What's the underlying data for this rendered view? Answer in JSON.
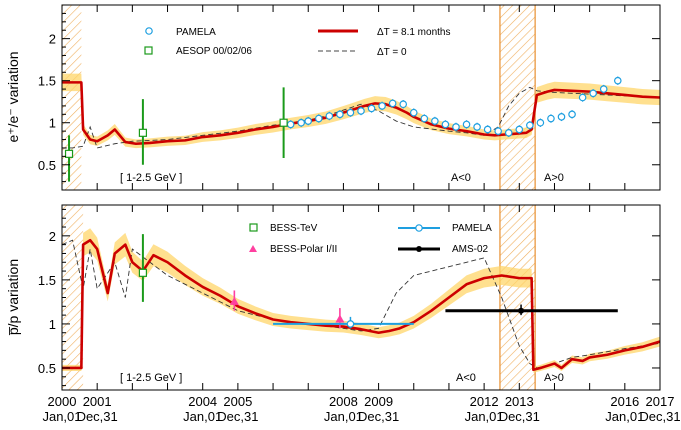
{
  "chart_data": [
    {
      "type": "line",
      "id": "top",
      "ylabel": "e+/e- variation",
      "ylim": [
        0.2,
        2.4
      ],
      "y_ticks": [
        "0.5",
        "1",
        "1.5",
        "2"
      ],
      "y_tick_values": [
        0.5,
        1,
        1.5,
        2
      ],
      "energy_label": "[ 1-2.5 GeV ]",
      "polarity_labels": [
        "A<0",
        "A>0"
      ],
      "shaded_periods": [
        [
          2000.0,
          2000.55
        ],
        [
          2012.45,
          2013.45
        ]
      ],
      "reversal_lines": [
        2012.45,
        2013.45
      ],
      "legend": {
        "pamela": "PAMELA",
        "aesop": "AESOP 00/02/06",
        "model_lag": "ΔT = 8.1 months",
        "model_zero": "ΔT = 0"
      },
      "series": [
        {
          "name": "ΔT = 8.1 months",
          "style": "model",
          "x": [
            2000.0,
            2000.55,
            2000.6,
            2000.8,
            2001.0,
            2001.3,
            2001.5,
            2001.8,
            2002.1,
            2002.5,
            2003.0,
            2003.5,
            2004.0,
            2004.5,
            2005.0,
            2005.5,
            2006.0,
            2006.5,
            2007.0,
            2007.5,
            2008.0,
            2008.3,
            2008.6,
            2008.9,
            2009.2,
            2009.5,
            2009.8,
            2010.0,
            2010.5,
            2011.0,
            2011.5,
            2012.0,
            2012.3,
            2012.6,
            2012.9,
            2013.2,
            2013.35,
            2013.5,
            2013.8,
            2014.0,
            2014.5,
            2015.0,
            2015.5,
            2016.0,
            2016.5,
            2017.0
          ],
          "y": [
            1.48,
            1.48,
            0.92,
            0.8,
            0.78,
            0.85,
            0.92,
            0.77,
            0.75,
            0.76,
            0.78,
            0.79,
            0.83,
            0.85,
            0.88,
            0.92,
            0.95,
            0.99,
            1.02,
            1.06,
            1.12,
            1.16,
            1.2,
            1.23,
            1.22,
            1.18,
            1.12,
            1.07,
            0.98,
            0.93,
            0.9,
            0.86,
            0.85,
            0.86,
            0.87,
            0.88,
            0.92,
            1.33,
            1.37,
            1.39,
            1.38,
            1.37,
            1.35,
            1.33,
            1.31,
            1.3
          ]
        },
        {
          "name": "ΔT = 0",
          "style": "dashed",
          "x": [
            2000.0,
            2000.3,
            2000.6,
            2000.8,
            2001.0,
            2001.5,
            2002.0,
            2003.0,
            2004.0,
            2005.0,
            2006.0,
            2007.0,
            2007.5,
            2008.0,
            2008.5,
            2009.0,
            2009.5,
            2010.0,
            2011.0,
            2011.5,
            2012.0,
            2012.4,
            2012.7,
            2013.0,
            2013.3,
            2013.5,
            2014.0,
            2014.5,
            2015.0,
            2016.0,
            2017.0
          ],
          "y": [
            0.7,
            0.7,
            0.72,
            0.95,
            0.7,
            0.75,
            0.78,
            0.8,
            0.85,
            0.9,
            0.97,
            1.03,
            1.08,
            1.15,
            1.22,
            1.14,
            1.02,
            0.95,
            0.9,
            0.88,
            0.85,
            0.95,
            1.2,
            1.35,
            1.42,
            1.38,
            1.36,
            1.35,
            1.34,
            1.32,
            1.3
          ]
        },
        {
          "name": "PAMELA",
          "style": "circles",
          "x": [
            2006.5,
            2006.8,
            2007.0,
            2007.3,
            2007.6,
            2007.9,
            2008.2,
            2008.5,
            2008.8,
            2009.1,
            2009.4,
            2009.7,
            2010.0,
            2010.3,
            2010.6,
            2010.9,
            2011.2,
            2011.5,
            2011.8,
            2012.1,
            2012.4,
            2012.7,
            2013.0,
            2013.3,
            2013.6,
            2013.9,
            2014.2,
            2014.5,
            2014.8,
            2015.1,
            2015.4,
            2015.8
          ],
          "y": [
            0.98,
            1.0,
            1.02,
            1.05,
            1.08,
            1.1,
            1.12,
            1.14,
            1.17,
            1.2,
            1.23,
            1.22,
            1.12,
            1.05,
            1.02,
            0.98,
            0.95,
            0.98,
            0.95,
            0.92,
            0.9,
            0.88,
            0.92,
            0.97,
            1.0,
            1.05,
            1.07,
            1.1,
            1.3,
            1.35,
            1.4,
            1.5
          ]
        },
        {
          "name": "AESOP 00/02/06",
          "style": "squares",
          "x": [
            2000.2,
            2002.3,
            2006.3
          ],
          "y": [
            0.63,
            0.88,
            1.0
          ],
          "y_err_low": [
            0.3,
            0.5,
            0.58
          ],
          "y_err_high": [
            0.85,
            1.28,
            1.42
          ]
        }
      ]
    },
    {
      "type": "line",
      "id": "bottom",
      "xlabel_ticks": [
        "2000",
        "2001",
        "2004",
        "2005",
        "2008",
        "2009",
        "2012",
        "2013",
        "2016",
        "2017"
      ],
      "xlabel_dates": [
        "Jan,01",
        "Dec,31",
        "Jan,01",
        "Dec,31",
        "Jan,01",
        "Dec,31",
        "Jan,01",
        "Dec,31",
        "Jan,01",
        "Dec,31"
      ],
      "x_tick_values": [
        2000.0,
        2001.0,
        2004.0,
        2005.0,
        2008.0,
        2009.0,
        2012.0,
        2013.0,
        2016.0,
        2017.0
      ],
      "ylabel": "p̅/p variation",
      "ylim": [
        0.25,
        2.35
      ],
      "y_ticks": [
        "0.5",
        "1",
        "1.5",
        "2"
      ],
      "y_tick_values": [
        0.5,
        1,
        1.5,
        2
      ],
      "energy_label": "[ 1-2.5 GeV ]",
      "polarity_labels": [
        "A<0",
        "A>0"
      ],
      "shaded_periods": [
        [
          2000.0,
          2000.6
        ],
        [
          2012.45,
          2013.45
        ]
      ],
      "reversal_lines": [
        2012.45,
        2013.45
      ],
      "legend": {
        "bess_tev": "BESS-TeV",
        "bess_polar": "BESS-Polar I/II",
        "pamela": "PAMELA",
        "ams02": "AMS-02"
      },
      "series": [
        {
          "name": "model",
          "style": "model",
          "x": [
            2000.0,
            2000.55,
            2000.6,
            2000.8,
            2001.0,
            2001.3,
            2001.5,
            2001.8,
            2002.0,
            2002.3,
            2002.6,
            2003.0,
            2003.5,
            2004.0,
            2004.5,
            2005.0,
            2005.5,
            2006.0,
            2006.5,
            2007.0,
            2007.5,
            2008.0,
            2008.5,
            2009.0,
            2009.3,
            2009.6,
            2010.0,
            2010.5,
            2011.0,
            2011.5,
            2012.0,
            2012.5,
            2013.0,
            2013.35,
            2013.4,
            2013.6,
            2014.0,
            2014.2,
            2014.5,
            2014.8,
            2015.0,
            2015.5,
            2016.0,
            2016.5,
            2017.0
          ],
          "y": [
            0.5,
            0.5,
            1.9,
            1.95,
            1.85,
            1.35,
            1.8,
            1.9,
            1.7,
            1.6,
            1.78,
            1.7,
            1.55,
            1.42,
            1.32,
            1.2,
            1.12,
            1.05,
            1.02,
            1.0,
            0.98,
            0.97,
            0.94,
            0.9,
            0.92,
            0.95,
            1.02,
            1.15,
            1.3,
            1.45,
            1.52,
            1.55,
            1.52,
            1.52,
            0.48,
            0.5,
            0.55,
            0.5,
            0.6,
            0.58,
            0.62,
            0.65,
            0.7,
            0.74,
            0.8
          ]
        },
        {
          "name": "ΔT = 0",
          "style": "dashed",
          "x": [
            2000.0,
            2000.3,
            2000.6,
            2000.8,
            2001.0,
            2001.5,
            2001.8,
            2002.0,
            2003.0,
            2004.0,
            2005.0,
            2006.0,
            2007.0,
            2008.0,
            2008.5,
            2009.0,
            2009.5,
            2010.0,
            2010.5,
            2011.0,
            2011.5,
            2012.0,
            2012.5,
            2013.0,
            2013.3,
            2013.5,
            2014.0,
            2014.5,
            2015.0,
            2016.0,
            2017.0
          ],
          "y": [
            1.9,
            1.95,
            1.4,
            1.85,
            1.4,
            1.7,
            1.3,
            1.85,
            1.55,
            1.35,
            1.15,
            1.05,
            1.0,
            0.95,
            0.92,
            0.95,
            1.35,
            1.55,
            1.6,
            1.65,
            1.7,
            1.75,
            1.3,
            0.75,
            0.55,
            0.5,
            0.55,
            0.62,
            0.65,
            0.72,
            0.78
          ]
        },
        {
          "name": "BESS-TeV",
          "style": "squares",
          "x": [
            2002.3
          ],
          "y": [
            1.58
          ],
          "y_err_low": [
            1.25
          ],
          "y_err_high": [
            2.02
          ]
        },
        {
          "name": "BESS-Polar I/II",
          "style": "triangles",
          "x": [
            2004.9,
            2007.9
          ],
          "y": [
            1.25,
            1.05
          ],
          "y_err_low": [
            1.15,
            0.95
          ],
          "y_err_high": [
            1.38,
            1.18
          ]
        },
        {
          "name": "PAMELA",
          "style": "pamela-bar",
          "x_start": 2006.0,
          "x_end": 2010.0,
          "y": 1.0,
          "center": 2008.2,
          "y_err_low": 0.95,
          "y_err_high": 1.08
        },
        {
          "name": "AMS-02",
          "style": "ams-bar",
          "x_start": 2010.9,
          "x_end": 2015.8,
          "y": 1.15,
          "center": 2013.05,
          "y_err_low": 1.1,
          "y_err_high": 1.22
        }
      ]
    }
  ]
}
